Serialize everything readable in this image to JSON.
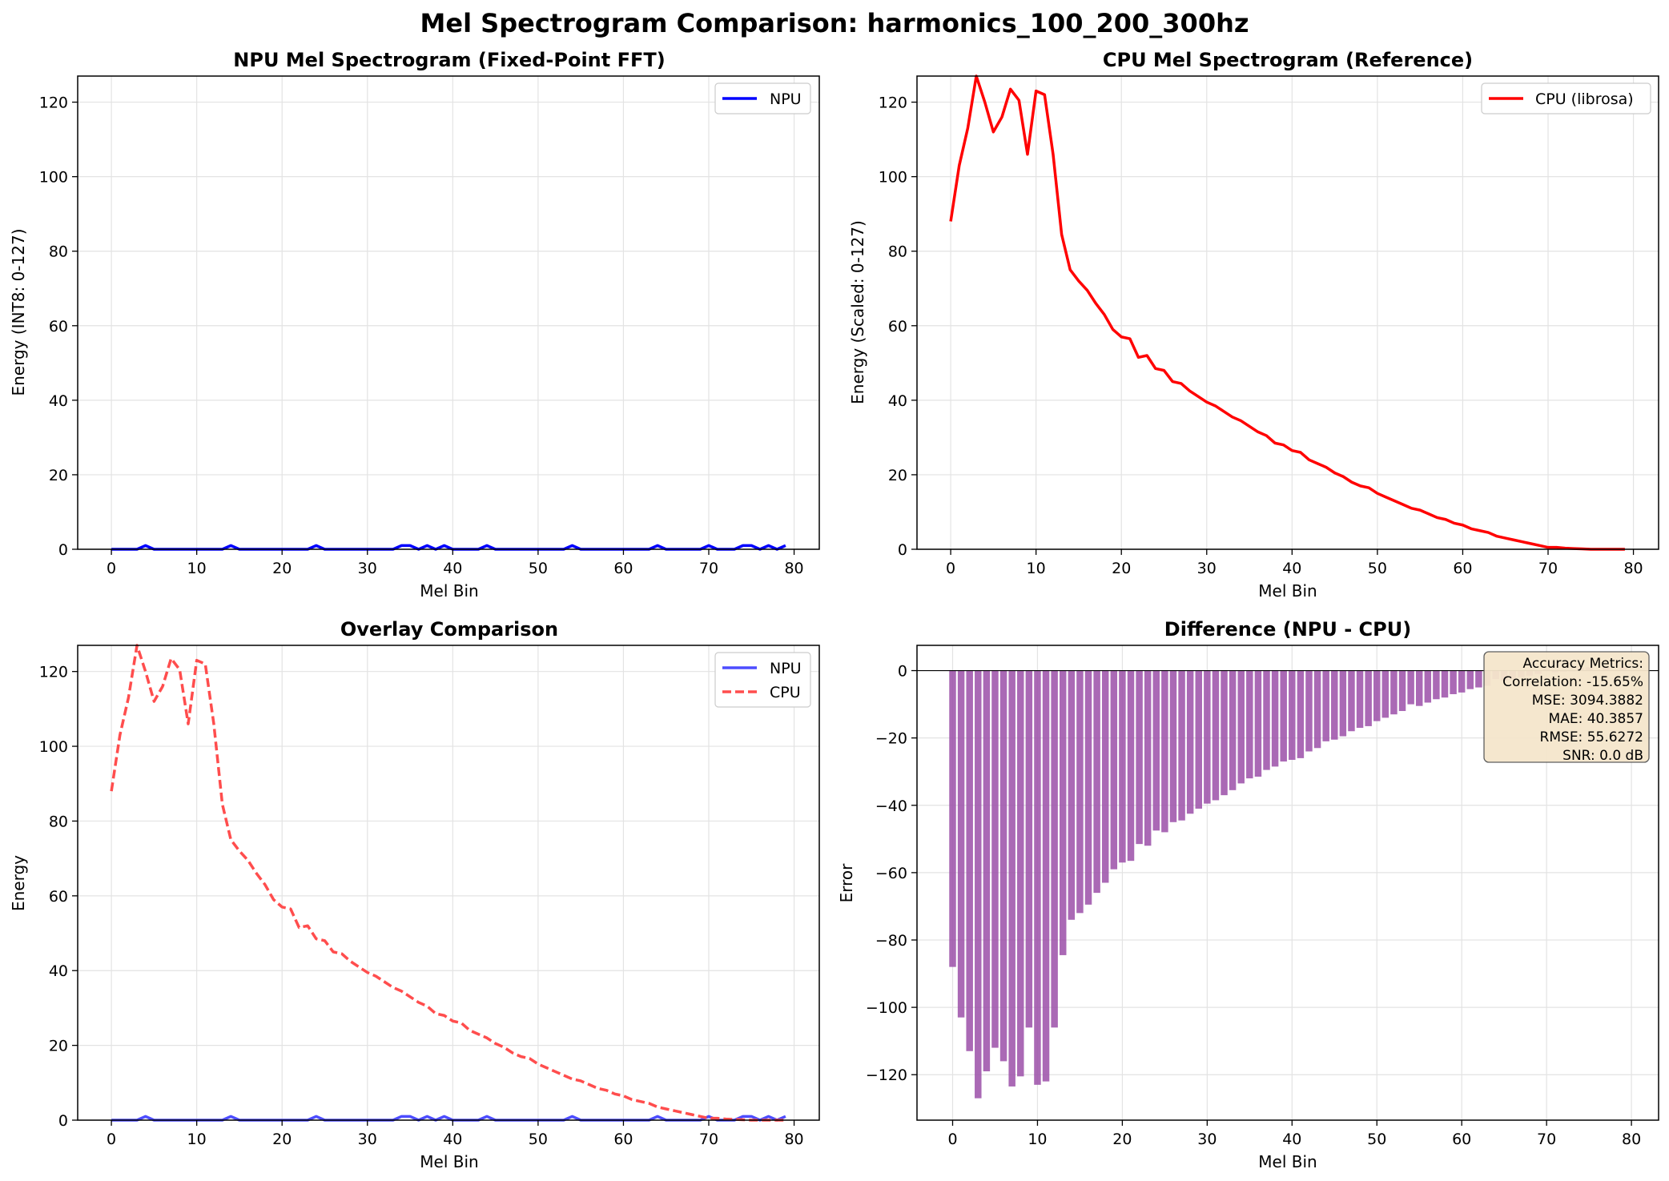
{
  "figure": {
    "suptitle": "Mel Spectrogram Comparison: harmonics_100_200_300hz"
  },
  "chart_data": [
    {
      "type": "line",
      "title": "NPU Mel Spectrogram (Fixed-Point FFT)",
      "xlabel": "Mel Bin",
      "ylabel": "Energy (INT8: 0-127)",
      "xlim": [
        -3.95,
        82.95
      ],
      "ylim": [
        0,
        127
      ],
      "xticks": [
        0,
        10,
        20,
        30,
        40,
        50,
        60,
        70,
        80
      ],
      "yticks": [
        0,
        20,
        40,
        60,
        80,
        100,
        120
      ],
      "grid": true,
      "legend_position": "upper right",
      "series": [
        {
          "name": "NPU",
          "color": "#0000ff",
          "style": "solid",
          "x": [
            0,
            1,
            2,
            3,
            4,
            5,
            6,
            7,
            8,
            9,
            10,
            11,
            12,
            13,
            14,
            15,
            16,
            17,
            18,
            19,
            20,
            21,
            22,
            23,
            24,
            25,
            26,
            27,
            28,
            29,
            30,
            31,
            32,
            33,
            34,
            35,
            36,
            37,
            38,
            39,
            40,
            41,
            42,
            43,
            44,
            45,
            46,
            47,
            48,
            49,
            50,
            51,
            52,
            53,
            54,
            55,
            56,
            57,
            58,
            59,
            60,
            61,
            62,
            63,
            64,
            65,
            66,
            67,
            68,
            69,
            70,
            71,
            72,
            73,
            74,
            75,
            76,
            77,
            78,
            79
          ],
          "y": [
            0,
            0,
            0,
            0,
            1,
            0,
            0,
            0,
            0,
            0,
            0,
            0,
            0,
            0,
            1,
            0,
            0,
            0,
            0,
            0,
            0,
            0,
            0,
            0,
            1,
            0,
            0,
            0,
            0,
            0,
            0,
            0,
            0,
            0,
            1,
            1,
            0,
            1,
            0,
            1,
            0,
            0,
            0,
            0,
            1,
            0,
            0,
            0,
            0,
            0,
            0,
            0,
            0,
            0,
            1,
            0,
            0,
            0,
            0,
            0,
            0,
            0,
            0,
            0,
            1,
            0,
            0,
            0,
            0,
            0,
            1,
            0,
            0,
            0,
            1,
            1,
            0,
            1,
            0,
            1
          ]
        }
      ]
    },
    {
      "type": "line",
      "title": "CPU Mel Spectrogram (Reference)",
      "xlabel": "Mel Bin",
      "ylabel": "Energy (Scaled: 0-127)",
      "xlim": [
        -3.95,
        82.95
      ],
      "ylim": [
        0,
        127
      ],
      "xticks": [
        0,
        10,
        20,
        30,
        40,
        50,
        60,
        70,
        80
      ],
      "yticks": [
        0,
        20,
        40,
        60,
        80,
        100,
        120
      ],
      "grid": true,
      "legend_position": "upper right",
      "series": [
        {
          "name": "CPU (librosa)",
          "color": "#ff0000",
          "style": "solid",
          "x": [
            0,
            1,
            2,
            3,
            4,
            5,
            6,
            7,
            8,
            9,
            10,
            11,
            12,
            13,
            14,
            15,
            16,
            17,
            18,
            19,
            20,
            21,
            22,
            23,
            24,
            25,
            26,
            27,
            28,
            29,
            30,
            31,
            32,
            33,
            34,
            35,
            36,
            37,
            38,
            39,
            40,
            41,
            42,
            43,
            44,
            45,
            46,
            47,
            48,
            49,
            50,
            51,
            52,
            53,
            54,
            55,
            56,
            57,
            58,
            59,
            60,
            61,
            62,
            63,
            64,
            65,
            66,
            67,
            68,
            69,
            70,
            71,
            72,
            73,
            74,
            75,
            76,
            77,
            78,
            79
          ],
          "y": [
            88,
            103,
            113,
            127,
            120,
            112,
            116,
            123.5,
            120.5,
            106,
            123,
            122,
            106,
            84.5,
            75,
            72,
            69.5,
            66,
            63,
            59,
            57,
            56.5,
            51.5,
            52,
            48.5,
            48,
            45,
            44.5,
            42.5,
            41,
            39.5,
            38.5,
            37,
            35.5,
            34.5,
            33,
            31.5,
            30.5,
            28.5,
            28,
            26.5,
            26,
            24,
            23,
            22,
            20.5,
            19.5,
            18,
            17,
            16.5,
            15,
            14,
            13,
            12,
            11,
            10.5,
            9.5,
            8.5,
            8,
            7,
            6.5,
            5.5,
            5,
            4.5,
            3.5,
            3,
            2.5,
            2,
            1.5,
            1,
            0.5,
            0.5,
            0.3,
            0.2,
            0.1,
            0,
            0,
            0,
            0,
            0
          ]
        }
      ]
    },
    {
      "type": "line",
      "title": "Overlay Comparison",
      "xlabel": "Mel Bin",
      "ylabel": "Energy",
      "xlim": [
        -3.95,
        82.95
      ],
      "ylim": [
        0,
        127
      ],
      "xticks": [
        0,
        10,
        20,
        30,
        40,
        50,
        60,
        70,
        80
      ],
      "yticks": [
        0,
        20,
        40,
        60,
        80,
        100,
        120
      ],
      "grid": true,
      "legend_position": "upper right",
      "series": [
        {
          "name": "NPU",
          "color": "#4d4dff",
          "style": "solid",
          "x": [
            0,
            1,
            2,
            3,
            4,
            5,
            6,
            7,
            8,
            9,
            10,
            11,
            12,
            13,
            14,
            15,
            16,
            17,
            18,
            19,
            20,
            21,
            22,
            23,
            24,
            25,
            26,
            27,
            28,
            29,
            30,
            31,
            32,
            33,
            34,
            35,
            36,
            37,
            38,
            39,
            40,
            41,
            42,
            43,
            44,
            45,
            46,
            47,
            48,
            49,
            50,
            51,
            52,
            53,
            54,
            55,
            56,
            57,
            58,
            59,
            60,
            61,
            62,
            63,
            64,
            65,
            66,
            67,
            68,
            69,
            70,
            71,
            72,
            73,
            74,
            75,
            76,
            77,
            78,
            79
          ],
          "y": [
            0,
            0,
            0,
            0,
            1,
            0,
            0,
            0,
            0,
            0,
            0,
            0,
            0,
            0,
            1,
            0,
            0,
            0,
            0,
            0,
            0,
            0,
            0,
            0,
            1,
            0,
            0,
            0,
            0,
            0,
            0,
            0,
            0,
            0,
            1,
            1,
            0,
            1,
            0,
            1,
            0,
            0,
            0,
            0,
            1,
            0,
            0,
            0,
            0,
            0,
            0,
            0,
            0,
            0,
            1,
            0,
            0,
            0,
            0,
            0,
            0,
            0,
            0,
            0,
            1,
            0,
            0,
            0,
            0,
            0,
            1,
            0,
            0,
            0,
            1,
            1,
            0,
            1,
            0,
            1
          ]
        },
        {
          "name": "CPU",
          "color": "#ff4d4d",
          "style": "dashed",
          "x": [
            0,
            1,
            2,
            3,
            4,
            5,
            6,
            7,
            8,
            9,
            10,
            11,
            12,
            13,
            14,
            15,
            16,
            17,
            18,
            19,
            20,
            21,
            22,
            23,
            24,
            25,
            26,
            27,
            28,
            29,
            30,
            31,
            32,
            33,
            34,
            35,
            36,
            37,
            38,
            39,
            40,
            41,
            42,
            43,
            44,
            45,
            46,
            47,
            48,
            49,
            50,
            51,
            52,
            53,
            54,
            55,
            56,
            57,
            58,
            59,
            60,
            61,
            62,
            63,
            64,
            65,
            66,
            67,
            68,
            69,
            70,
            71,
            72,
            73,
            74,
            75,
            76,
            77,
            78,
            79
          ],
          "y": [
            88,
            103,
            113,
            127,
            120,
            112,
            116,
            123.5,
            120.5,
            106,
            123,
            122,
            106,
            84.5,
            75,
            72,
            69.5,
            66,
            63,
            59,
            57,
            56.5,
            51.5,
            52,
            48.5,
            48,
            45,
            44.5,
            42.5,
            41,
            39.5,
            38.5,
            37,
            35.5,
            34.5,
            33,
            31.5,
            30.5,
            28.5,
            28,
            26.5,
            26,
            24,
            23,
            22,
            20.5,
            19.5,
            18,
            17,
            16.5,
            15,
            14,
            13,
            12,
            11,
            10.5,
            9.5,
            8.5,
            8,
            7,
            6.5,
            5.5,
            5,
            4.5,
            3.5,
            3,
            2.5,
            2,
            1.5,
            1,
            0.5,
            0.5,
            0.3,
            0.2,
            0.1,
            0,
            0,
            0,
            0,
            0
          ]
        }
      ]
    },
    {
      "type": "bar",
      "title": "Difference (NPU - CPU)",
      "xlabel": "Mel Bin",
      "ylabel": "Error",
      "xlim": [
        -4.2,
        83.2
      ],
      "ylim": [
        -133.5,
        7.5
      ],
      "xticks": [
        0,
        10,
        20,
        30,
        40,
        50,
        60,
        70,
        80
      ],
      "yticks": [
        0,
        -20,
        -40,
        -60,
        -80,
        -100,
        -120
      ],
      "grid": true,
      "zero_line": true,
      "bar_color": "#9b4fa8",
      "categories": [
        0,
        1,
        2,
        3,
        4,
        5,
        6,
        7,
        8,
        9,
        10,
        11,
        12,
        13,
        14,
        15,
        16,
        17,
        18,
        19,
        20,
        21,
        22,
        23,
        24,
        25,
        26,
        27,
        28,
        29,
        30,
        31,
        32,
        33,
        34,
        35,
        36,
        37,
        38,
        39,
        40,
        41,
        42,
        43,
        44,
        45,
        46,
        47,
        48,
        49,
        50,
        51,
        52,
        53,
        54,
        55,
        56,
        57,
        58,
        59,
        60,
        61,
        62,
        63,
        64,
        65,
        66,
        67,
        68,
        69,
        70,
        71,
        72,
        73,
        74,
        75,
        76,
        77,
        78,
        79
      ],
      "values": [
        -88,
        -103,
        -113,
        -127,
        -119,
        -112,
        -116,
        -123.5,
        -120.5,
        -106,
        -123,
        -122,
        -106,
        -84.5,
        -74,
        -72,
        -69.5,
        -66,
        -63,
        -59,
        -57,
        -56.5,
        -51.5,
        -52,
        -47.5,
        -48,
        -45,
        -44.5,
        -42.5,
        -41,
        -39.5,
        -38.5,
        -37,
        -35.5,
        -33.5,
        -32,
        -31.5,
        -29.5,
        -28.5,
        -27,
        -26.5,
        -26,
        -24,
        -23,
        -21,
        -20.5,
        -19.5,
        -18,
        -17,
        -16.5,
        -15,
        -14,
        -13,
        -12,
        -10,
        -10.5,
        -9.5,
        -8.5,
        -8,
        -7,
        -6.5,
        -5.5,
        -5,
        -4.5,
        -2.5,
        -3,
        -2.5,
        -2,
        -1.5,
        -1,
        0.5,
        -0.5,
        -0.3,
        -0.2,
        0.9,
        1,
        0,
        1,
        0,
        1
      ],
      "annotation": {
        "lines": [
          "Accuracy Metrics:",
          "Correlation: -15.65%",
          "MSE: 3094.3882",
          "MAE: 40.3857",
          "RMSE: 55.6272",
          "SNR: 0.0 dB"
        ],
        "background": "#f5e6cc"
      }
    }
  ]
}
